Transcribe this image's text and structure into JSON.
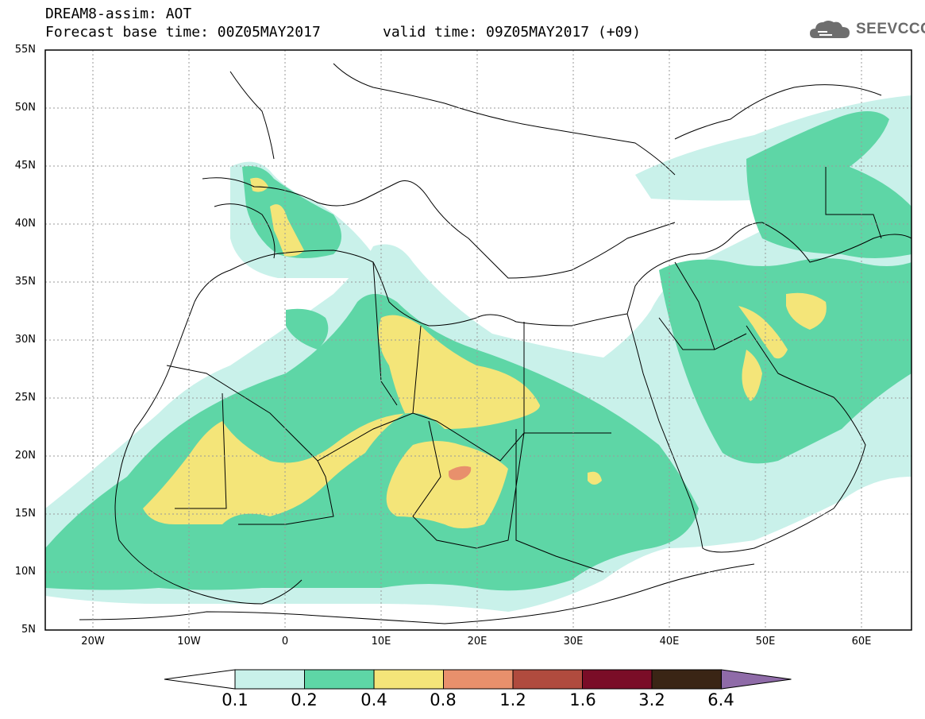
{
  "header": {
    "title": "DREAM8-assim: AOT",
    "base_time": "Forecast base time: 00Z05MAY2017",
    "valid_time": "valid time: 09Z05MAY2017 (+09)",
    "logo_text": "SEEVCCC"
  },
  "map": {
    "lat_labels": [
      "55N",
      "50N",
      "45N",
      "40N",
      "35N",
      "30N",
      "25N",
      "20N",
      "15N",
      "10N",
      "5N"
    ],
    "lon_labels": [
      "20W",
      "10W",
      "0",
      "10E",
      "20E",
      "30E",
      "40E",
      "50E",
      "60E"
    ],
    "grid": true
  },
  "colorbar": {
    "levels": [
      "0.1",
      "0.2",
      "0.4",
      "0.8",
      "1.2",
      "1.6",
      "3.2",
      "6.4"
    ],
    "colors": [
      "#c9f1ea",
      "#5ed6a6",
      "#f4e579",
      "#e8906c",
      "#b04b3e",
      "#7a0d27",
      "#3a2515",
      "#8f6ba8"
    ]
  }
}
